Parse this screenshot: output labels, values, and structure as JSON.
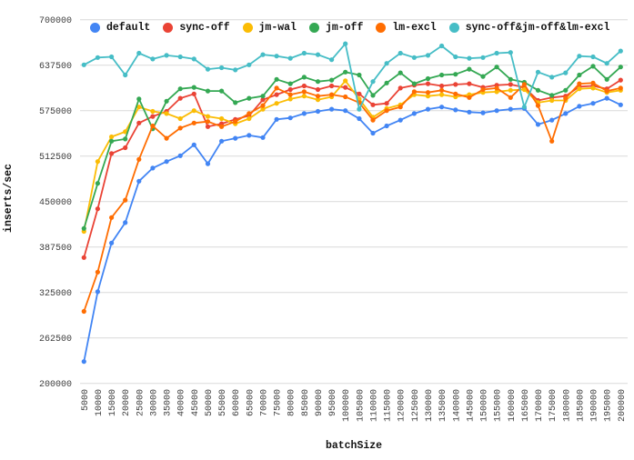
{
  "chart_data": {
    "type": "line",
    "title": "",
    "xlabel": "batchSize",
    "ylabel": "inserts/sec",
    "ylim": [
      200000,
      700000
    ],
    "xlim_categories": [
      5000,
      200000
    ],
    "grid": "horizontal-only",
    "legend_position": "top",
    "background_color": "#ffffff",
    "gridline_color": "#d9d9d9",
    "tick_label_color": "#3c3c3c",
    "axis_title_color": "#111111",
    "y_ticks": [
      200000,
      262500,
      325000,
      387500,
      450000,
      512500,
      575000,
      637500,
      700000
    ],
    "y_tick_labels": [
      "200000",
      "262500",
      "325000",
      "387500",
      "450000",
      "512500",
      "575000",
      "637500",
      "700000"
    ],
    "categories": [
      5000,
      10000,
      15000,
      20000,
      25000,
      30000,
      35000,
      40000,
      45000,
      50000,
      55000,
      60000,
      65000,
      70000,
      75000,
      80000,
      85000,
      90000,
      95000,
      100000,
      105000,
      110000,
      115000,
      120000,
      125000,
      130000,
      135000,
      140000,
      145000,
      150000,
      155000,
      160000,
      165000,
      170000,
      175000,
      180000,
      185000,
      190000,
      195000,
      200000
    ],
    "category_labels": [
      "5000",
      "10000",
      "15000",
      "20000",
      "25000",
      "30000",
      "35000",
      "40000",
      "45000",
      "50000",
      "55000",
      "60000",
      "65000",
      "70000",
      "75000",
      "80000",
      "85000",
      "90000",
      "95000",
      "100000",
      "105000",
      "110000",
      "115000",
      "120000",
      "125000",
      "130000",
      "135000",
      "140000",
      "145000",
      "150000",
      "155000",
      "160000",
      "165000",
      "170000",
      "175000",
      "180000",
      "185000",
      "190000",
      "195000",
      "200000"
    ],
    "series": [
      {
        "name": "default",
        "color": "#4285f4",
        "values": [
          230000,
          326000,
          393000,
          421000,
          478000,
          496000,
          505000,
          513000,
          528000,
          502000,
          533000,
          537000,
          541000,
          538000,
          563000,
          565000,
          571000,
          574000,
          577000,
          575000,
          564000,
          544000,
          554000,
          562000,
          571000,
          577000,
          580000,
          576000,
          573000,
          572000,
          575000,
          577000,
          578000,
          556000,
          562000,
          571000,
          581000,
          585000,
          592000,
          583000
        ]
      },
      {
        "name": "sync-off",
        "color": "#ea4335",
        "values": [
          373000,
          440000,
          516000,
          524000,
          558000,
          567000,
          574000,
          592000,
          598000,
          553000,
          557000,
          563000,
          568000,
          590000,
          597000,
          604000,
          609000,
          604000,
          609000,
          607000,
          598000,
          583000,
          585000,
          606000,
          610000,
          612000,
          609000,
          611000,
          612000,
          607000,
          610000,
          611000,
          607000,
          589000,
          593000,
          595000,
          608000,
          609000,
          605000,
          617000
        ]
      },
      {
        "name": "jm-wal",
        "color": "#fbbc04",
        "values": [
          409000,
          505000,
          539000,
          546000,
          580000,
          574000,
          571000,
          564000,
          575000,
          567000,
          564000,
          557000,
          564000,
          577000,
          585000,
          591000,
          595000,
          590000,
          594000,
          616000,
          591000,
          566000,
          578000,
          583000,
          597000,
          595000,
          597000,
          594000,
          597000,
          600000,
          601000,
          603000,
          604000,
          586000,
          589000,
          589000,
          605000,
          606000,
          600000,
          603000
        ]
      },
      {
        "name": "jm-off",
        "color": "#34a853",
        "values": [
          413000,
          475000,
          533000,
          536000,
          591000,
          550000,
          588000,
          605000,
          607000,
          602000,
          602000,
          586000,
          592000,
          595000,
          618000,
          612000,
          621000,
          615000,
          617000,
          628000,
          624000,
          596000,
          613000,
          627000,
          612000,
          619000,
          624000,
          625000,
          632000,
          622000,
          635000,
          618000,
          614000,
          603000,
          596000,
          603000,
          624000,
          636000,
          618000,
          635000
        ]
      },
      {
        "name": "lm-excl",
        "color": "#ff6d01",
        "values": [
          299000,
          353000,
          428000,
          452000,
          508000,
          554000,
          537000,
          551000,
          558000,
          560000,
          553000,
          560000,
          571000,
          582000,
          606000,
          597000,
          601000,
          595000,
          597000,
          594000,
          586000,
          562000,
          575000,
          580000,
          601000,
          600000,
          603000,
          598000,
          593000,
          604000,
          606000,
          593000,
          611000,
          582000,
          533000,
          592000,
          612000,
          613000,
          602000,
          606000
        ]
      },
      {
        "name": "sync-off&jm-off&lm-excl",
        "color": "#46bdc6",
        "values": [
          638000,
          648000,
          649000,
          624000,
          654000,
          646000,
          651000,
          649000,
          646000,
          632000,
          634000,
          631000,
          638000,
          652000,
          650000,
          647000,
          654000,
          652000,
          645000,
          667000,
          577000,
          615000,
          640000,
          654000,
          648000,
          651000,
          664000,
          649000,
          647000,
          648000,
          654000,
          655000,
          580000,
          628000,
          621000,
          627000,
          650000,
          649000,
          640000,
          657000
        ]
      }
    ]
  }
}
